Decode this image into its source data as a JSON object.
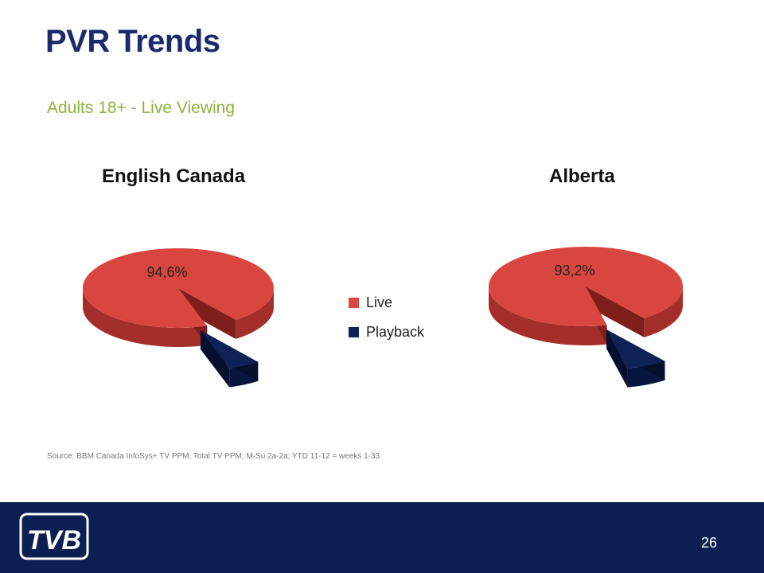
{
  "slide": {
    "title": "PVR Trends",
    "subtitle": "Adults 18+ - Live Viewing",
    "source": "Source: BBM Canada InfoSys+ TV PPM; Total TV PPM; M-Su 2a-2a; YTD 11-12 = weeks 1-33",
    "page_number": "26",
    "logo_text": "TVB"
  },
  "colors": {
    "title": "#1a2a6c",
    "subtitle": "#8eb33b",
    "live": "#d9453f",
    "playback": "#0f2257",
    "footer": "#0c1f52"
  },
  "chart_data": [
    {
      "type": "pie",
      "title": "English Canada",
      "categories": [
        "Live",
        "Playback"
      ],
      "values": [
        94.6,
        5.4
      ],
      "labels": [
        "94,6%",
        ""
      ],
      "exploded": "Playback",
      "legend": "center"
    },
    {
      "type": "pie",
      "title": "Alberta",
      "categories": [
        "Live",
        "Playback"
      ],
      "values": [
        93.2,
        6.8
      ],
      "labels": [
        "93,2%",
        ""
      ],
      "exploded": "Playback",
      "legend": "center"
    }
  ],
  "legend": {
    "items": [
      {
        "label": "Live",
        "color": "#d9453f"
      },
      {
        "label": "Playback",
        "color": "#0f2257"
      }
    ]
  }
}
